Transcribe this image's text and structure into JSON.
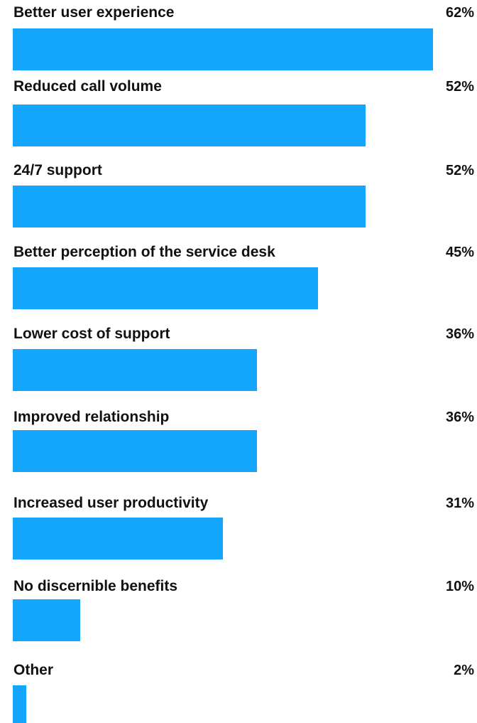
{
  "chart_data": {
    "type": "bar",
    "orientation": "horizontal",
    "categories": [
      "Better user experience",
      "Reduced call volume",
      "24/7 support",
      "Better perception of the service desk",
      "Lower cost of support",
      "Improved relationship",
      "Increased user productivity",
      "No discernible benefits",
      "Other"
    ],
    "values": [
      62,
      52,
      52,
      45,
      36,
      36,
      31,
      10,
      2
    ],
    "value_labels": [
      "62%",
      "52%",
      "52%",
      "45%",
      "36%",
      "36%",
      "31%",
      "10%",
      "2%"
    ],
    "unit": "%",
    "bar_color": "#13a6fc",
    "grid": false,
    "legend": "none"
  }
}
